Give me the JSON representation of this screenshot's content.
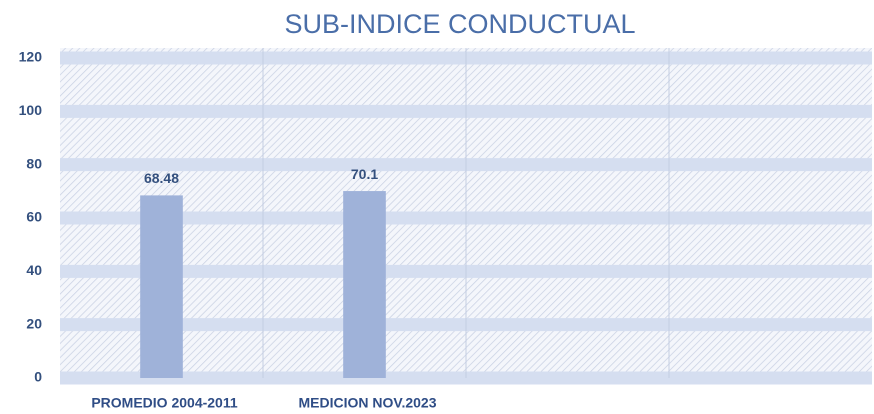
{
  "chart_data": {
    "type": "bar",
    "title": "SUB-INDICE CONDUCTUAL",
    "categories": [
      "PROMEDIO 2004-2011",
      "MEDICION NOV.2023",
      null,
      null
    ],
    "values": [
      68.48,
      70.1,
      null,
      null
    ],
    "color": "#9fb2d9",
    "ylim": [
      0,
      120
    ],
    "yticks": [
      0,
      20,
      40,
      60,
      80,
      100,
      120
    ],
    "grid": true
  }
}
